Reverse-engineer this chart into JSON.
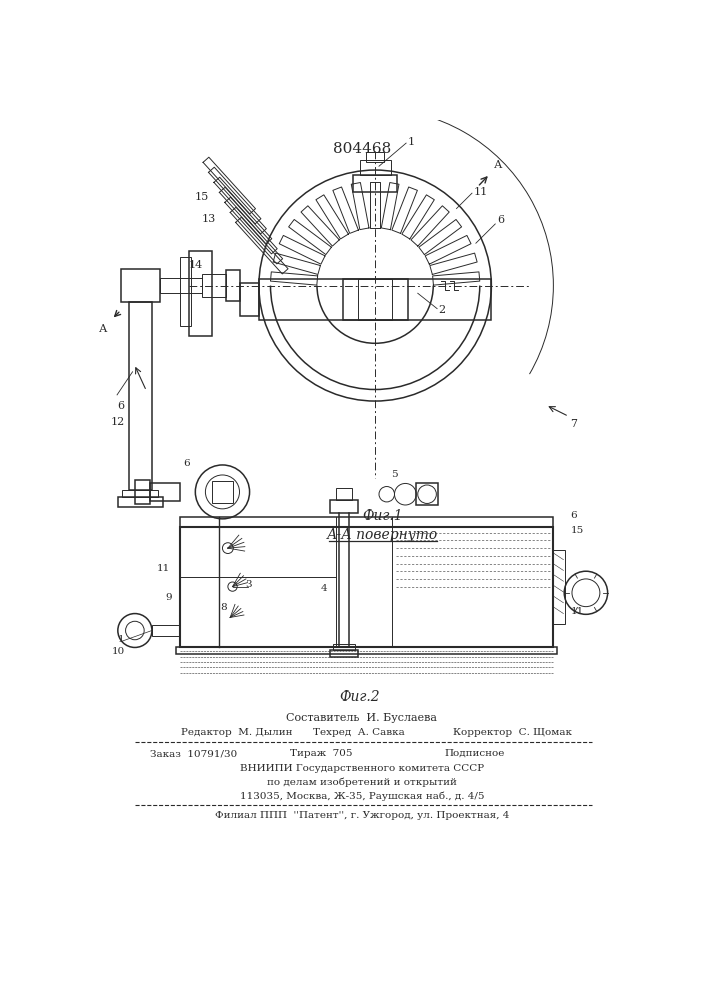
{
  "patent_number": "804468",
  "fig1_label": "Фиг.1",
  "fig2_label": "Фиг.2",
  "section_label": "А-А повернуто",
  "footer": {
    "line0": "Составитель  И. Буслаева",
    "line1_left": "Редактор  М. Дылин",
    "line1_mid": "Техред  А. Савка",
    "line1_right": "Корректор  С. Щомак",
    "line2_left": "Заказ  10791/30",
    "line2_mid": "Тираж  705",
    "line2_right": "Подписное",
    "line3": "ВНИИПИ Государственного комитета СССР",
    "line4": "по делам изобретений и открытий",
    "line5": "113035, Москва, Ж-35, Раушская наб., д. 4/5",
    "line6": "Филиал ППП  ''Патент'', г. Ужгород, ул. Проектная, 4"
  },
  "bg_color": "#ffffff",
  "line_color": "#2a2a2a"
}
